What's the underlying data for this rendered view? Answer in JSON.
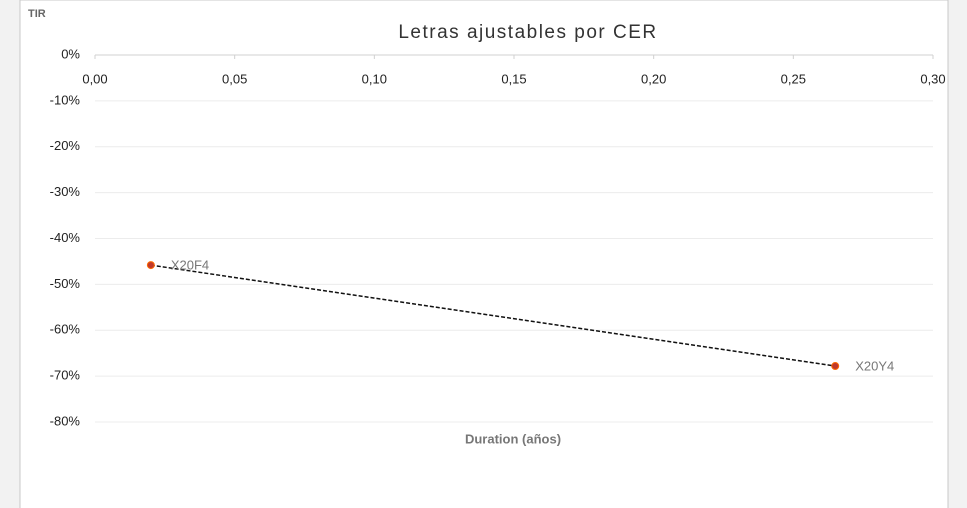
{
  "chart_data": {
    "type": "scatter",
    "title": "Letras ajustables por CER",
    "y_axis_label": "TIR",
    "x_axis_label": "Duration (años)",
    "x": [
      0.02,
      0.265
    ],
    "values": [
      -45.8,
      -67.8
    ],
    "point_labels": [
      "X20F4",
      "X20Y4"
    ],
    "color": "#c0392b",
    "trendline": "linear",
    "xlim": [
      0,
      0.3
    ],
    "xticks": [
      {
        "value": 0,
        "label": "0,00"
      },
      {
        "value": 0.05,
        "label": "0,05"
      },
      {
        "value": 0.1,
        "label": "0,10"
      },
      {
        "value": 0.15,
        "label": "0,15"
      },
      {
        "value": 0.2,
        "label": "0,20"
      },
      {
        "value": 0.25,
        "label": "0,25"
      },
      {
        "value": 0.3,
        "label": "0,30"
      }
    ],
    "ylim": [
      -80,
      0
    ],
    "yticks": [
      {
        "value": 0,
        "label": "0%"
      },
      {
        "value": -10,
        "label": "-10%"
      },
      {
        "value": -20,
        "label": "-20%"
      },
      {
        "value": -30,
        "label": "-30%"
      },
      {
        "value": -40,
        "label": "-40%"
      },
      {
        "value": -50,
        "label": "-50%"
      },
      {
        "value": -60,
        "label": "-60%"
      },
      {
        "value": -70,
        "label": "-70%"
      },
      {
        "value": -80,
        "label": "-80%"
      }
    ],
    "grid": true
  }
}
